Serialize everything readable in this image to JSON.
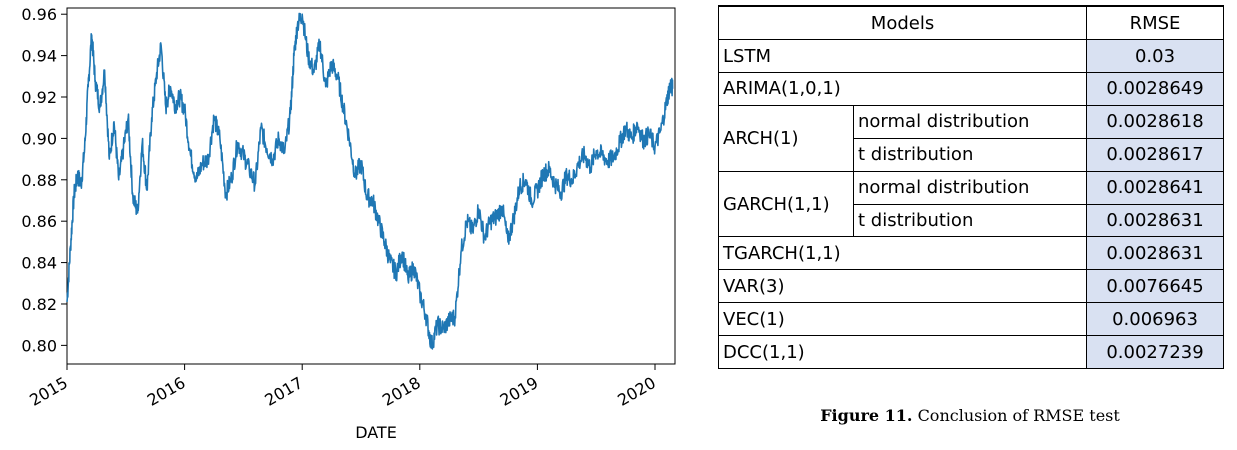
{
  "chart_data": {
    "type": "line",
    "title": "",
    "xlabel": "DATE",
    "ylabel": "",
    "xlim": [
      2015.0,
      2020.17
    ],
    "ylim": [
      0.791,
      0.963
    ],
    "x_ticks": [
      "2015",
      "2016",
      "2017",
      "2018",
      "2019",
      "2020"
    ],
    "x_tick_values": [
      2015,
      2016,
      2017,
      2018,
      2019,
      2020
    ],
    "y_ticks": [
      "0.80",
      "0.82",
      "0.84",
      "0.86",
      "0.88",
      "0.90",
      "0.92",
      "0.94",
      "0.96"
    ],
    "y_tick_values": [
      0.8,
      0.82,
      0.84,
      0.86,
      0.88,
      0.9,
      0.92,
      0.94,
      0.96
    ],
    "grid": false,
    "line_color": "#1f77b4",
    "series": [
      {
        "x": [
          2015.0,
          2015.03,
          2015.06,
          2015.09,
          2015.12,
          2015.15,
          2015.18,
          2015.21,
          2015.24,
          2015.28,
          2015.32,
          2015.36,
          2015.4,
          2015.44,
          2015.48,
          2015.52,
          2015.56,
          2015.6,
          2015.64,
          2015.68,
          2015.72,
          2015.76,
          2015.8,
          2015.84,
          2015.88,
          2015.92,
          2015.96,
          2016.0,
          2016.05,
          2016.1,
          2016.15,
          2016.2,
          2016.25,
          2016.3,
          2016.35,
          2016.4,
          2016.45,
          2016.5,
          2016.55,
          2016.6,
          2016.65,
          2016.7,
          2016.75,
          2016.8,
          2016.85,
          2016.9,
          2016.93,
          2016.96,
          2017.0,
          2017.05,
          2017.1,
          2017.15,
          2017.2,
          2017.25,
          2017.3,
          2017.35,
          2017.4,
          2017.45,
          2017.5,
          2017.55,
          2017.6,
          2017.65,
          2017.7,
          2017.75,
          2017.8,
          2017.85,
          2017.9,
          2017.95,
          2018.0,
          2018.05,
          2018.1,
          2018.15,
          2018.2,
          2018.25,
          2018.3,
          2018.35,
          2018.4,
          2018.45,
          2018.5,
          2018.55,
          2018.6,
          2018.65,
          2018.7,
          2018.75,
          2018.8,
          2018.85,
          2018.9,
          2018.95,
          2019.0,
          2019.05,
          2019.1,
          2019.15,
          2019.2,
          2019.25,
          2019.3,
          2019.35,
          2019.4,
          2019.45,
          2019.5,
          2019.55,
          2019.6,
          2019.65,
          2019.7,
          2019.75,
          2019.8,
          2019.85,
          2019.9,
          2019.95,
          2020.0,
          2020.05,
          2020.1,
          2020.13,
          2020.15
        ],
        "y": [
          0.821,
          0.848,
          0.873,
          0.882,
          0.878,
          0.895,
          0.925,
          0.95,
          0.928,
          0.915,
          0.933,
          0.89,
          0.908,
          0.88,
          0.895,
          0.91,
          0.872,
          0.864,
          0.898,
          0.875,
          0.91,
          0.93,
          0.945,
          0.915,
          0.925,
          0.916,
          0.92,
          0.914,
          0.892,
          0.88,
          0.888,
          0.89,
          0.91,
          0.9,
          0.873,
          0.881,
          0.898,
          0.892,
          0.885,
          0.878,
          0.905,
          0.895,
          0.89,
          0.9,
          0.893,
          0.912,
          0.94,
          0.955,
          0.96,
          0.94,
          0.932,
          0.946,
          0.925,
          0.936,
          0.93,
          0.915,
          0.9,
          0.882,
          0.888,
          0.872,
          0.87,
          0.86,
          0.85,
          0.84,
          0.835,
          0.845,
          0.832,
          0.838,
          0.825,
          0.815,
          0.8,
          0.81,
          0.808,
          0.812,
          0.814,
          0.845,
          0.86,
          0.855,
          0.866,
          0.852,
          0.86,
          0.862,
          0.867,
          0.85,
          0.862,
          0.877,
          0.88,
          0.87,
          0.875,
          0.883,
          0.885,
          0.878,
          0.874,
          0.882,
          0.88,
          0.888,
          0.892,
          0.886,
          0.894,
          0.892,
          0.889,
          0.891,
          0.898,
          0.905,
          0.9,
          0.907,
          0.899,
          0.902,
          0.896,
          0.904,
          0.918,
          0.926,
          0.924
        ]
      }
    ]
  },
  "table": {
    "header": {
      "models": "Models",
      "rmse": "RMSE"
    },
    "rows": {
      "lstm": {
        "model": "LSTM",
        "value": "0.03"
      },
      "arima": {
        "model": "ARIMA(1,0,1)",
        "value": "0.0028649"
      },
      "arch": {
        "model": "ARCH(1)",
        "normal": "normal distribution",
        "normal_value": "0.0028618",
        "t": "t distribution",
        "t_value": "0.0028617"
      },
      "garch": {
        "model": "GARCH(1,1)",
        "normal": "normal distribution",
        "normal_value": "0.0028641",
        "t": "t distribution",
        "t_value": "0.0028631"
      },
      "tgarch": {
        "model": "TGARCH(1,1)",
        "value": "0.0028631"
      },
      "var": {
        "model": "VAR(3)",
        "value": "0.0076645"
      },
      "vec": {
        "model": "VEC(1)",
        "value": "0.006963"
      },
      "dcc": {
        "model": "DCC(1,1)",
        "value": "0.0027239"
      }
    },
    "value_fill": "#d9e1f2"
  },
  "caption": {
    "label": "Figure 11.",
    "text": "Conclusion of RMSE test"
  }
}
